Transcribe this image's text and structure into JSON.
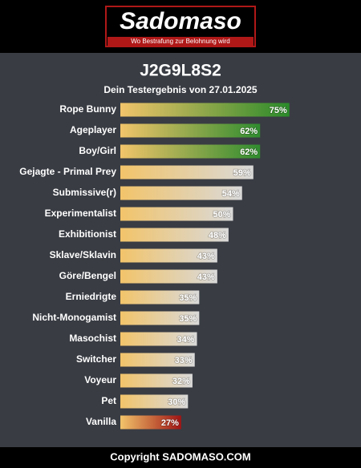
{
  "header": {
    "logo": "Sadomaso",
    "tagline": "Wo Bestrafung zur Belohnung wird"
  },
  "chart_data": {
    "type": "bar",
    "orientation": "horizontal",
    "title": "J2G9L8S2",
    "subtitle": "Dein Testergebnis von 27.01.2025",
    "categories": [
      "Rope Bunny",
      "Ageplayer",
      "Boy/Girl",
      "Gejagte - Primal Prey",
      "Submissive(r)",
      "Experimentalist",
      "Exhibitionist",
      "Sklave/Sklavin",
      "Göre/Bengel",
      "Erniedrigte",
      "Nicht-Monogamist",
      "Masochist",
      "Switcher",
      "Voyeur",
      "Pet",
      "Vanilla"
    ],
    "values": [
      75,
      62,
      62,
      59,
      54,
      50,
      48,
      43,
      43,
      35,
      35,
      34,
      33,
      32,
      30,
      27
    ],
    "value_labels": [
      "75%",
      "62%",
      "62%",
      "59%",
      "54%",
      "50%",
      "48%",
      "43%",
      "43%",
      "35%",
      "35%",
      "34%",
      "33%",
      "32%",
      "30%",
      "27%"
    ],
    "colors": [
      "#2a8a2a",
      "#2f8c2f",
      "#2f8c2f",
      "#d9d9d9",
      "#d9d9d9",
      "#d9d9d9",
      "#d9d9d9",
      "#d9d9d9",
      "#d9d9d9",
      "#d9d9d9",
      "#d9d9d9",
      "#d9d9d9",
      "#d9d9d9",
      "#d9d9d9",
      "#d9d9d9",
      "#a01414"
    ]
  },
  "footer": {
    "text": "Copyright SADOMASO.COM"
  }
}
